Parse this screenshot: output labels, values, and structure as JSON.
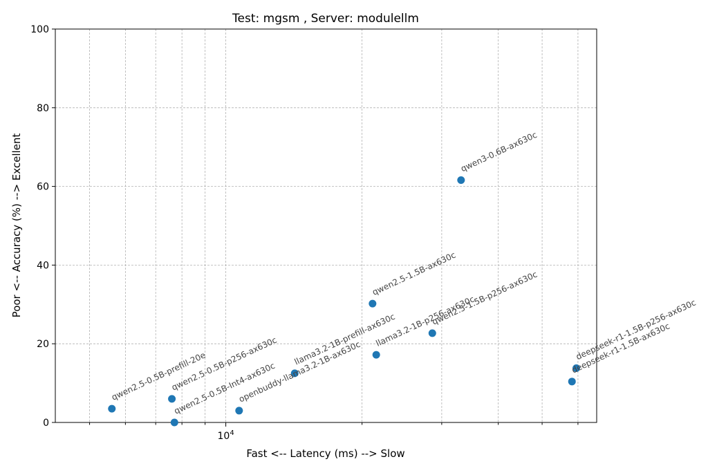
{
  "chart_data": {
    "type": "scatter",
    "title": "Test: mgsm , Server: modulellm",
    "xlabel": "Fast <--  Latency (ms)  --> Slow",
    "ylabel": "Poor <--  Accuracy (%)  --> Excellent",
    "x_scale": "log",
    "xlim": [
      4200,
      66000
    ],
    "ylim": [
      0,
      100
    ],
    "x_tick_labels": [
      {
        "value": 10000,
        "label": "10^4"
      }
    ],
    "y_ticks": [
      0,
      20,
      40,
      60,
      80,
      100
    ],
    "grid": true,
    "point_color": "#1f77b4",
    "points": [
      {
        "label": "qwen2.5-0.5B-prefill-20e",
        "x": 5600,
        "y": 3.5
      },
      {
        "label": "qwen2.5-0.5B-p256-ax630c",
        "x": 7600,
        "y": 6
      },
      {
        "label": "qwen2.5-0.5B-Int4-ax630c",
        "x": 7700,
        "y": 0
      },
      {
        "label": "openbuddy-llama3.2-1B-ax630c",
        "x": 10700,
        "y": 3
      },
      {
        "label": "llama3.2-1B-prefill-ax630c",
        "x": 14200,
        "y": 12.5
      },
      {
        "label": "qwen2.5-1.5B-ax630c",
        "x": 21100,
        "y": 30.2
      },
      {
        "label": "llama3.2-1B-p256-ax630c",
        "x": 21500,
        "y": 17.2
      },
      {
        "label": "qwen2.5-1.5B-p256-ax630c",
        "x": 28600,
        "y": 22.7
      },
      {
        "label": "qwen3-0.6B-ax630c",
        "x": 33100,
        "y": 61.6
      },
      {
        "label": "deepseek-r1-1.5B-p256-ax630c",
        "x": 59500,
        "y": 13.8
      },
      {
        "label": "deepseek-r1-1.5B-ax630c",
        "x": 58200,
        "y": 10.4
      }
    ]
  }
}
